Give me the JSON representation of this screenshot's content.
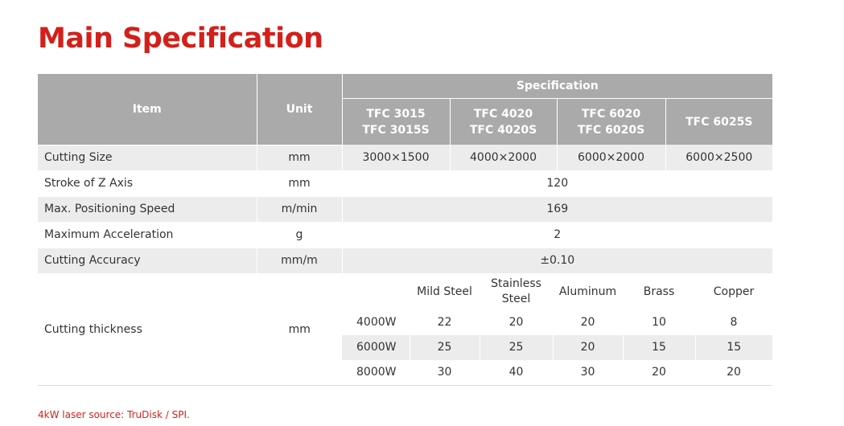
{
  "title": "Main Specification",
  "header": {
    "item": "Item",
    "unit": "Unit",
    "specification": "Specification",
    "models": [
      {
        "line1": "TFC 3015",
        "line2": "TFC 3015S"
      },
      {
        "line1": "TFC 4020",
        "line2": "TFC 4020S"
      },
      {
        "line1": "TFC 6020",
        "line2": "TFC 6020S"
      },
      {
        "line1": "TFC 6025S",
        "line2": ""
      }
    ]
  },
  "rows": [
    {
      "item": "Cutting Size",
      "unit": "mm",
      "values": [
        "3000×1500",
        "4000×2000",
        "6000×2000",
        "6000×2500"
      ]
    },
    {
      "item": "Stroke of Z Axis",
      "unit": "mm",
      "value": "120"
    },
    {
      "item": "Max. Positioning Speed",
      "unit": "m/min",
      "value": "169"
    },
    {
      "item": "Maximum Acceleration",
      "unit": "g",
      "value": "2"
    },
    {
      "item": "Cutting Accuracy",
      "unit": "mm/m",
      "value": "±0.10"
    }
  ],
  "thickness": {
    "item": "Cutting thickness",
    "unit": "mm",
    "materials": [
      {
        "line1": "Mild Steel",
        "line2": ""
      },
      {
        "line1": "Stainless",
        "line2": "Steel"
      },
      {
        "line1": "Aluminum",
        "line2": ""
      },
      {
        "line1": "Brass",
        "line2": ""
      },
      {
        "line1": "Copper",
        "line2": ""
      }
    ],
    "powers": [
      {
        "power": "4000W",
        "values": [
          "22",
          "20",
          "20",
          "10",
          "8"
        ]
      },
      {
        "power": "6000W",
        "values": [
          "25",
          "25",
          "20",
          "15",
          "15"
        ]
      },
      {
        "power": "8000W",
        "values": [
          "30",
          "40",
          "30",
          "20",
          "20"
        ]
      }
    ]
  },
  "footnote": "4kW laser source: TruDisk / SPI."
}
